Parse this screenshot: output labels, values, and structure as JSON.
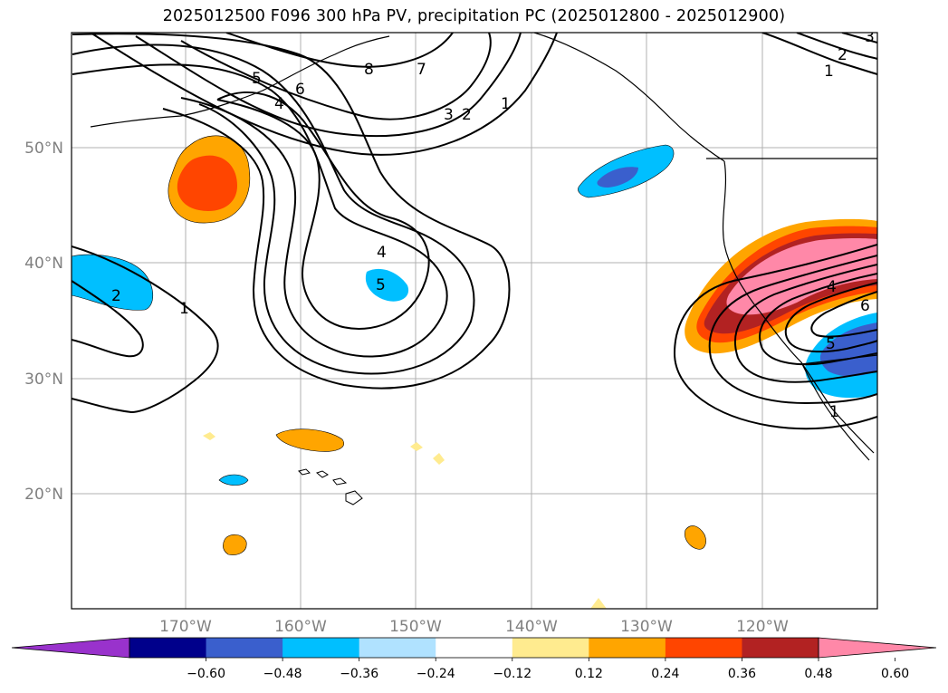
{
  "title": "2025012500 F096 300 hPa PV, precipitation PC (2025012800 - 2025012900)",
  "lat_labels": [
    "50°N",
    "40°N",
    "30°N",
    "20°N"
  ],
  "lon_labels": [
    "170°W",
    "160°W",
    "150°W",
    "140°W",
    "130°W",
    "120°W"
  ],
  "colorbar": {
    "ticks": [
      "−0.60",
      "−0.48",
      "−0.36",
      "−0.24",
      "−0.12",
      "0.12",
      "0.24",
      "0.36",
      "0.48",
      "0.60"
    ],
    "colors": [
      "#9932cc",
      "#00008b",
      "#3a5fcd",
      "#00bfff",
      "#b0e2ff",
      "#ffffff",
      "#ffeb8f",
      "#ffa500",
      "#ff4500",
      "#b22222",
      "#ff88a8"
    ]
  },
  "contour_labels": [
    "5",
    "6",
    "4",
    "7",
    "3",
    "2",
    "1",
    "8",
    "2",
    "1",
    "3",
    "2",
    "1",
    "4",
    "5",
    "4",
    "6",
    "5",
    "1"
  ]
}
